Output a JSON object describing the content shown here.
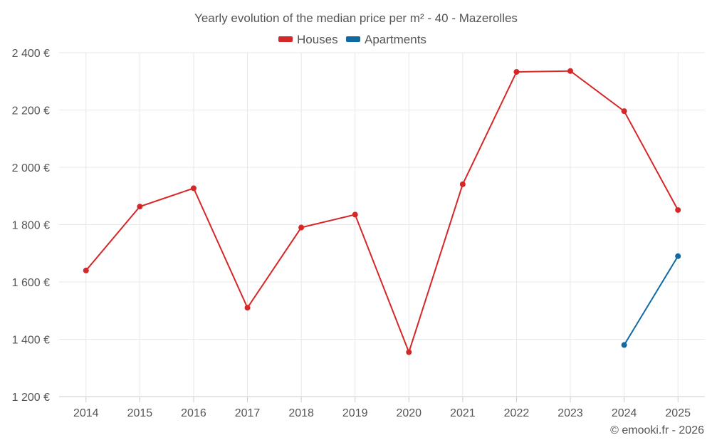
{
  "chart_data": {
    "type": "line",
    "title": "Yearly evolution of the median price per m² - 40 - Mazerolles",
    "categories": [
      "2014",
      "2015",
      "2016",
      "2017",
      "2018",
      "2019",
      "2020",
      "2021",
      "2022",
      "2023",
      "2024",
      "2025"
    ],
    "series": [
      {
        "name": "Houses",
        "color": "#d62728",
        "values": [
          1640,
          1863,
          1927,
          1510,
          1790,
          1835,
          1355,
          1941,
          2333,
          2336,
          2196,
          1851
        ]
      },
      {
        "name": "Apartments",
        "color": "#0e6aa0",
        "values": [
          null,
          null,
          null,
          null,
          null,
          null,
          null,
          null,
          null,
          null,
          1380,
          1690
        ]
      }
    ],
    "y_ticks": [
      1200,
      1400,
      1600,
      1800,
      2000,
      2200,
      2400
    ],
    "y_tick_labels": [
      "1 200 €",
      "1 400 €",
      "1 600 €",
      "1 800 €",
      "2 000 €",
      "2 200 €",
      "2 400 €"
    ],
    "ylim": [
      1200,
      2400
    ],
    "legend_position": "top-center",
    "grid": true,
    "credit": "© emooki.fr - 2026"
  }
}
